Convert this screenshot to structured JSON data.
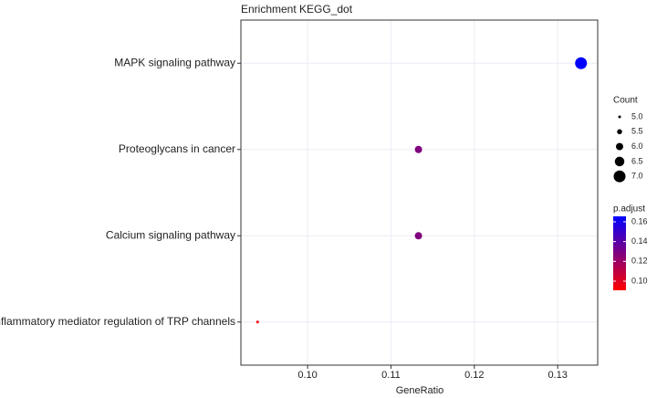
{
  "chart_data": {
    "type": "dot",
    "title": "Enrichment KEGG_dot",
    "xlabel": "GeneRatio",
    "categories": [
      "MAPK signaling pathway",
      "Proteoglycans in cancer",
      "Calcium signaling pathway",
      "Inflammatory mediator regulation of TRP channels"
    ],
    "values": [
      0.1328,
      0.1133,
      0.1133,
      0.094
    ],
    "counts": [
      7,
      6,
      6,
      5
    ],
    "p_adjust": [
      0.165,
      0.128,
      0.128,
      0.091
    ],
    "xlim": [
      0.092,
      0.1348
    ],
    "xticks": [
      {
        "value": 0.1,
        "label": "0.10"
      },
      0.11,
      0.12,
      0.13
    ],
    "grid": true,
    "size_title": "Count",
    "size_ticks": [
      {
        "value": 5,
        "label": "5.0"
      },
      5.5,
      {
        "value": 6,
        "label": "6.0"
      },
      6.5,
      {
        "value": 7,
        "label": "7.0"
      }
    ],
    "color_title": "p.adjust",
    "clim": [
      0.0908,
      0.1655
    ],
    "color_ticks": [
      {
        "value": 0.1,
        "label": "0.10"
      },
      0.12,
      0.14,
      0.16
    ],
    "color_low": "#ff0000",
    "color_high": "#0000ff"
  }
}
